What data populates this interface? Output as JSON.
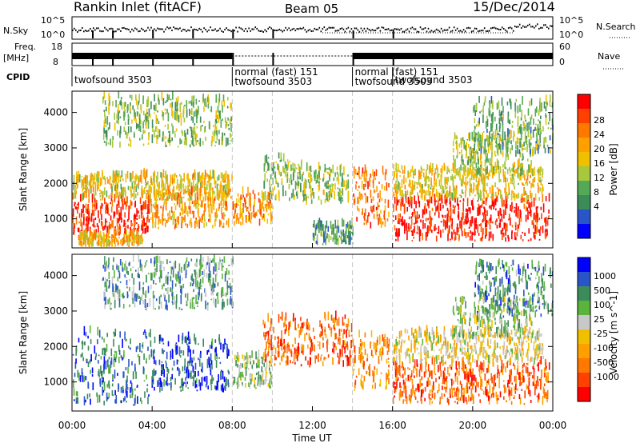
{
  "header": {
    "title": "Rankin Inlet (fitACF)",
    "beam": "Beam 05",
    "date": "15/Dec/2014"
  },
  "noise_panel": {
    "left_label": "N.Sky",
    "right_label": "N.Search",
    "left_ticks": [
      "10^5",
      "10^0"
    ],
    "right_ticks": [
      "10^5",
      "10^0"
    ]
  },
  "freq_panel": {
    "left_label_1": "Freq.",
    "left_label_2": "[MHz]",
    "right_label": "Nave",
    "left_ticks": [
      "18",
      "8"
    ],
    "right_ticks": [
      "60",
      "0"
    ]
  },
  "cpid": {
    "label": "CPID",
    "segments": [
      {
        "start_h": 0,
        "end_h": 8,
        "lines": [
          "twofsound 3503"
        ]
      },
      {
        "start_h": 8,
        "end_h": 14,
        "lines": [
          "normal (fast) 151",
          "twofsound 3503"
        ]
      },
      {
        "start_h": 14,
        "end_h": 16,
        "lines": [
          "normal (fast) 151",
          "twofsound 3503"
        ]
      },
      {
        "start_h": 16,
        "end_h": 24,
        "lines": [
          "twofsound 3503"
        ]
      }
    ]
  },
  "chart_data": [
    {
      "type": "heatmap",
      "quantity": "power",
      "ylabel": "Slant Range [km]",
      "x_range_h": [
        0,
        24
      ],
      "ylim_km": [
        180,
        4600
      ],
      "y_ticks": [
        1000,
        2000,
        3000,
        4000
      ],
      "colorbar": {
        "label": "Power [dB]",
        "levels": [
          "28",
          "24",
          "20",
          "16",
          "12",
          "8",
          "4"
        ],
        "colors": [
          "#0000ff",
          "#2a55c8",
          "#3c8c5a",
          "#55a855",
          "#a8c83c",
          "#f0c000",
          "#ffa000",
          "#ff7800",
          "#ff4000",
          "#ff0000"
        ]
      },
      "regions": [
        {
          "t": [
            0.0,
            3.9
          ],
          "r": [
            500,
            1500
          ],
          "v": 0.9
        },
        {
          "t": [
            0.0,
            8.0
          ],
          "r": [
            1500,
            2200
          ],
          "v": 0.55
        },
        {
          "t": [
            3.9,
            7.8
          ],
          "r": [
            700,
            1700
          ],
          "v": 0.65
        },
        {
          "t": [
            8.0,
            10.0
          ],
          "r": [
            800,
            1700
          ],
          "v": 0.7
        },
        {
          "t": [
            9.5,
            11.5
          ],
          "r": [
            1500,
            2700
          ],
          "v": 0.4
        },
        {
          "t": [
            11.5,
            13.8
          ],
          "r": [
            1400,
            2400
          ],
          "v": 0.45
        },
        {
          "t": [
            12.0,
            14.0
          ],
          "r": [
            250,
            800
          ],
          "v": 0.3
        },
        {
          "t": [
            14.0,
            15.8
          ],
          "r": [
            700,
            2300
          ],
          "v": 0.75
        },
        {
          "t": [
            16.0,
            23.8
          ],
          "r": [
            350,
            1500
          ],
          "v": 0.93
        },
        {
          "t": [
            16.0,
            23.5
          ],
          "r": [
            1500,
            2400
          ],
          "v": 0.55
        },
        {
          "t": [
            19.0,
            23.0
          ],
          "r": [
            2200,
            3300
          ],
          "v": 0.45
        },
        {
          "t": [
            1.5,
            8.0
          ],
          "r": [
            3000,
            4400
          ],
          "v": 0.4
        },
        {
          "t": [
            20.0,
            24.0
          ],
          "r": [
            2800,
            4300
          ],
          "v": 0.35
        },
        {
          "t": [
            0.3,
            3.5
          ],
          "r": [
            200,
            500
          ],
          "v": 0.6
        }
      ]
    },
    {
      "type": "heatmap",
      "quantity": "velocity",
      "ylabel": "Slant Range [km]",
      "x_range_h": [
        0,
        24
      ],
      "ylim_km": [
        180,
        4600
      ],
      "y_ticks": [
        1000,
        2000,
        3000,
        4000
      ],
      "colorbar": {
        "label": "Velocity [m s^-1]",
        "levels": [
          "1000",
          "500",
          "100",
          "25",
          "-25",
          "-100",
          "-500",
          "-1000"
        ],
        "colors": [
          "#ff0000",
          "#ff4000",
          "#ff7800",
          "#ffa000",
          "#f0c000",
          "#c8c8c8",
          "#5ab43c",
          "#3c8c5a",
          "#2a55c8",
          "#0000ff"
        ]
      },
      "x_ticks": [
        "00:00",
        "04:00",
        "08:00",
        "12:00",
        "16:00",
        "20:00",
        "00:00"
      ],
      "xlabel": "Time UT",
      "regions": [
        {
          "t": [
            0.0,
            3.9
          ],
          "r": [
            300,
            2400
          ],
          "v": 0.78
        },
        {
          "t": [
            3.9,
            7.8
          ],
          "r": [
            700,
            2200
          ],
          "v": 0.85
        },
        {
          "t": [
            8.0,
            10.0
          ],
          "r": [
            800,
            1700
          ],
          "v": 0.6
        },
        {
          "t": [
            9.5,
            14.0
          ],
          "r": [
            1400,
            2800
          ],
          "v": 0.22
        },
        {
          "t": [
            14.0,
            15.8
          ],
          "r": [
            700,
            2300
          ],
          "v": 0.3
        },
        {
          "t": [
            16.0,
            23.8
          ],
          "r": [
            350,
            1500
          ],
          "v": 0.2
        },
        {
          "t": [
            16.0,
            23.5
          ],
          "r": [
            1500,
            2400
          ],
          "v": 0.48
        },
        {
          "t": [
            19.0,
            23.0
          ],
          "r": [
            2200,
            3300
          ],
          "v": 0.6
        },
        {
          "t": [
            1.5,
            8.0
          ],
          "r": [
            3000,
            4400
          ],
          "v": 0.7
        },
        {
          "t": [
            20.0,
            24.0
          ],
          "r": [
            2800,
            4300
          ],
          "v": 0.75
        }
      ]
    }
  ]
}
